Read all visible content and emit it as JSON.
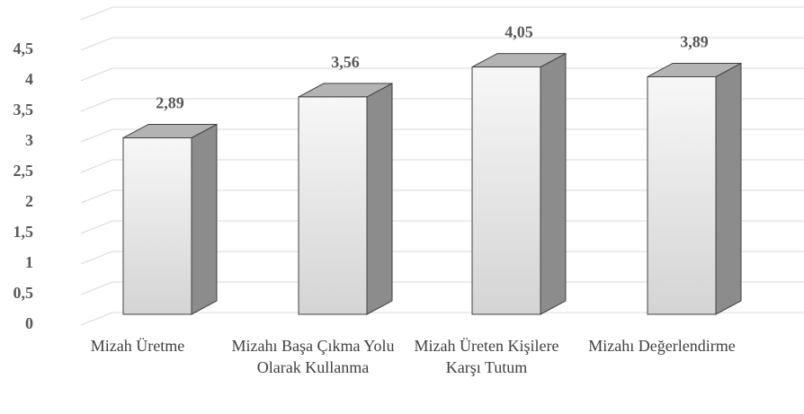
{
  "chart_data": {
    "type": "bar3d",
    "categories": [
      "Mizah Üretme",
      "Mizahı Başa Çıkma Yolu Olarak Kullanma",
      "Mizah Üreten Kişilere Karşı Tutum",
      "Mizahı Değerlendirme"
    ],
    "values": [
      2.89,
      3.56,
      4.05,
      3.89
    ],
    "value_labels": [
      "2,89",
      "3,56",
      "4,05",
      "3,89"
    ],
    "ylim": [
      0,
      5
    ],
    "yticks": [
      0,
      {
        "value": 0.5,
        "label": "0,5"
      },
      1,
      {
        "value": 1.5,
        "label": "1,5"
      },
      2,
      {
        "value": 2.5,
        "label": "2,5"
      },
      3,
      {
        "value": 3.5,
        "label": "3,5"
      },
      4,
      {
        "value": 4.5,
        "label": "4,5"
      }
    ],
    "grid": true,
    "color": "#e6e6e6"
  }
}
